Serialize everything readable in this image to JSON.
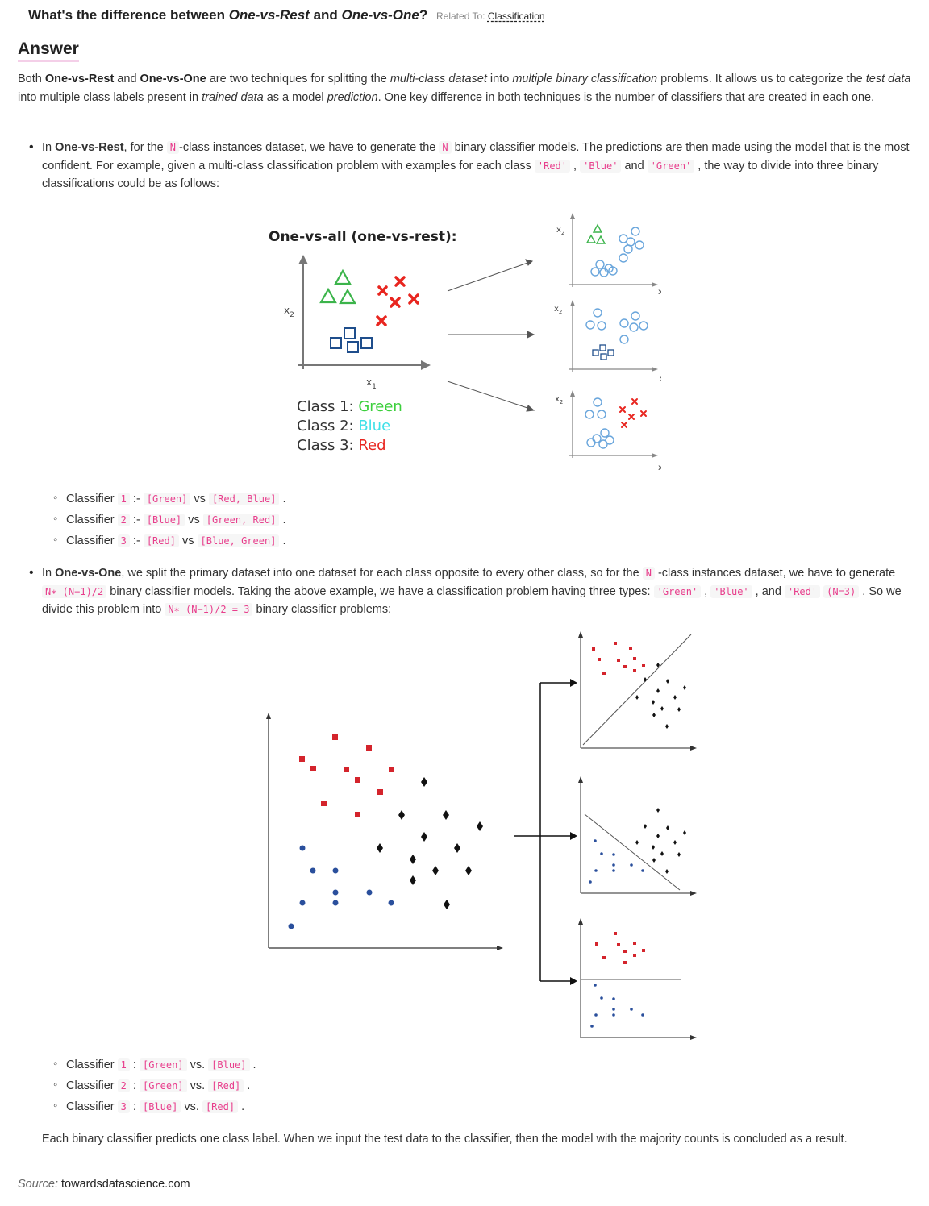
{
  "header": {
    "q_pre": "What's the difference between ",
    "q_em1": "One-vs-Rest",
    "q_mid": " and ",
    "q_em2": "One-vs-One",
    "q_post": "?",
    "related_label": "Related To:",
    "related_link": "Classification"
  },
  "answer_heading": "Answer",
  "intro": {
    "t1": "Both ",
    "b1": "One-vs-Rest",
    "t2": " and ",
    "b2": "One-vs-One",
    "t3": " are two techniques for splitting the ",
    "i1": "multi-class dataset",
    "t4": " into ",
    "i2": "multiple binary classification",
    "t5": " problems. It allows us to categorize the ",
    "i3": "test data",
    "t6": " into multiple class labels present in ",
    "i4": "trained data",
    "t7": " as a model ",
    "i5": "prediction",
    "t8": ". One key difference in both techniques is the number of classifiers that are created in each one."
  },
  "ovr": {
    "t1": "In ",
    "b1": "One-vs-Rest",
    "t2": ", for the ",
    "c1": "N",
    "t3": "-class instances dataset, we have to generate the ",
    "c2": "N",
    "t4": " binary classifier models. The predictions are then made using the model that is the most confident. For example, given a multi-class classification problem with examples for each class ",
    "c3": "'Red'",
    "t5": " , ",
    "c4": "'Blue'",
    "t6": " and ",
    "c5": "'Green'",
    "t7": " , the way to divide into three binary classifications could be as follows:",
    "classifiers": [
      {
        "pre": "Classifier ",
        "num": "1",
        "sep": " :- ",
        "a": "[Green]",
        "vs": " vs ",
        "b": "[Red, Blue]",
        "end": " ."
      },
      {
        "pre": "Classifier ",
        "num": "2",
        "sep": " :- ",
        "a": "[Blue]",
        "vs": " vs ",
        "b": "[Green, Red]",
        "end": " ."
      },
      {
        "pre": "Classifier ",
        "num": "3",
        "sep": " :- ",
        "a": "[Red]",
        "vs": " vs ",
        "b": "[Blue, Green]",
        "end": " ."
      }
    ]
  },
  "figure1": {
    "title": "One-vs-all (one-vs-rest):",
    "x_axis": "x",
    "y_axis": "x",
    "sub1": "1",
    "sub2": "2",
    "class_prefix": [
      "Class 1:",
      "Class 2:",
      "Class 3:"
    ],
    "class_names": [
      "Green",
      "Blue",
      "Red"
    ],
    "colors": {
      "green": "#3cb44b",
      "blue": "#1f4e8c",
      "light_blue": "#7fb3e0",
      "red": "#e8251f",
      "cyan": "#3ee0e8"
    }
  },
  "ovo": {
    "t1": "In ",
    "b1": "One-vs-One",
    "t2": ", we split the primary dataset into one dataset for each class opposite to every other class, so for the ",
    "c1": "N",
    "t3": " -class instances dataset, we have to generate ",
    "c2": "N∗ (N−1)/2",
    "t4": " binary classifier models. Taking the above example, we have a classification problem having three types: ",
    "c3": "'Green'",
    "t5": " , ",
    "c4": "'Blue'",
    "t6": " , and ",
    "c5": "'Red'",
    "t7": " ",
    "c6": "(N=3)",
    "t8": " . So we divide this problem into ",
    "c7": "N∗ (N−1)/2 = 3",
    "t9": " binary classifier problems:",
    "classifiers": [
      {
        "pre": "Classifier ",
        "num": "1",
        "sep": " : ",
        "a": "[Green]",
        "vs": " vs. ",
        "b": "[Blue]",
        "end": " ."
      },
      {
        "pre": "Classifier ",
        "num": "2",
        "sep": " : ",
        "a": "[Green]",
        "vs": " vs. ",
        "b": "[Red]",
        "end": " ."
      },
      {
        "pre": "Classifier ",
        "num": "3",
        "sep": " : ",
        "a": "[Blue]",
        "vs": " vs. ",
        "b": "[Red]",
        "end": " ."
      }
    ]
  },
  "conclusion": "Each binary classifier predicts one class label. When we input the test data to the classifier, then the model with the majority counts is concluded as a result.",
  "source": {
    "label": "Source:",
    "value": "towardsdatascience.com"
  }
}
